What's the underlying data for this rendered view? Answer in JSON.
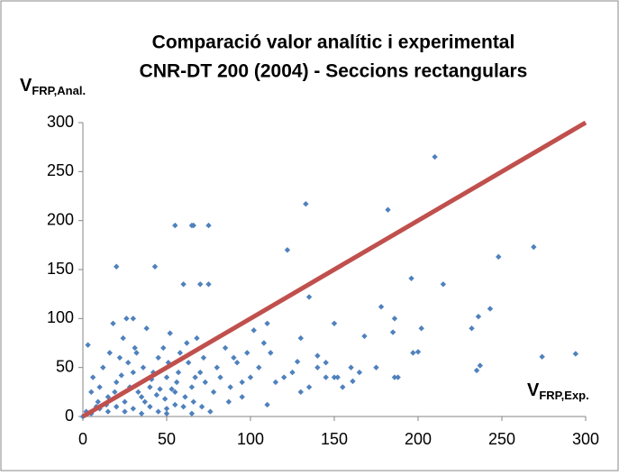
{
  "chart_data": {
    "type": "scatter",
    "title": [
      "Comparació valor analític i experimental",
      "CNR-DT 200 (2004) - Seccions rectangulars"
    ],
    "ylabel": {
      "main": "V",
      "sub": "FRP,Anal."
    },
    "xlabel": {
      "main": "V",
      "sub": "FRP,Exp."
    },
    "xlim": [
      0,
      300
    ],
    "ylim": [
      0,
      300
    ],
    "xticks": [
      0,
      50,
      100,
      150,
      200,
      250,
      300
    ],
    "yticks": [
      0,
      50,
      100,
      150,
      200,
      250,
      300
    ],
    "grid": false,
    "series": [
      {
        "color": "#4f81bd",
        "x": [
          210,
          133,
          182,
          55,
          65,
          66,
          75,
          122,
          20,
          43,
          269,
          248,
          60,
          70,
          75,
          215,
          196,
          135,
          110,
          150,
          178,
          186,
          185,
          202,
          232,
          243,
          236,
          168,
          235,
          237,
          274,
          294,
          200,
          197,
          186,
          188,
          161,
          160,
          152,
          145,
          140,
          128,
          130,
          140,
          120,
          110,
          100,
          95,
          90,
          85,
          80,
          70,
          65,
          60,
          55,
          50,
          45,
          40,
          35,
          30,
          25,
          20,
          15,
          10,
          5,
          3,
          8,
          12,
          18,
          22,
          26,
          32,
          38,
          42,
          48,
          52,
          58,
          62,
          68,
          72,
          78,
          82,
          88,
          92,
          98,
          105,
          115,
          125,
          135,
          145,
          155,
          165,
          175,
          0,
          2,
          5,
          10,
          15,
          20,
          25,
          30,
          35,
          40,
          45,
          50,
          55,
          28,
          33,
          37,
          44,
          49,
          53,
          57,
          63,
          67,
          73,
          24,
          16,
          6,
          9,
          14,
          19,
          23,
          27,
          31,
          36,
          41,
          46,
          51,
          56,
          61,
          66,
          71,
          76,
          65,
          112,
          108,
          102,
          95,
          87,
          130,
          150,
          50,
          30
        ],
        "values": [
          265,
          217,
          211,
          195,
          195,
          195,
          195,
          170,
          153,
          153,
          173,
          163,
          135,
          135,
          135,
          135,
          141,
          122,
          95,
          95,
          112,
          100,
          86,
          90,
          90,
          110,
          102,
          82,
          47,
          52,
          61,
          64,
          66,
          65,
          40,
          40,
          36,
          50,
          40,
          55,
          50,
          56,
          80,
          62,
          40,
          12,
          40,
          20,
          60,
          70,
          50,
          45,
          30,
          10,
          25,
          40,
          60,
          30,
          20,
          45,
          15,
          35,
          20,
          30,
          25,
          73,
          10,
          50,
          95,
          60,
          100,
          65,
          90,
          45,
          70,
          85,
          65,
          75,
          80,
          60,
          25,
          40,
          30,
          55,
          65,
          50,
          35,
          45,
          30,
          40,
          30,
          45,
          50,
          0,
          5,
          3,
          8,
          5,
          10,
          5,
          8,
          3,
          10,
          5,
          8,
          12,
          30,
          25,
          15,
          22,
          18,
          28,
          45,
          55,
          40,
          35,
          80,
          65,
          40,
          15,
          12,
          25,
          42,
          55,
          70,
          50,
          38,
          28,
          55,
          35,
          20,
          15,
          10,
          5,
          3,
          65,
          75,
          88,
          35,
          15,
          25,
          40,
          3,
          100
        ]
      },
      {
        "color": "#c0504d",
        "mode": "line",
        "x": [
          0,
          300
        ],
        "values": [
          0,
          300
        ]
      }
    ]
  }
}
